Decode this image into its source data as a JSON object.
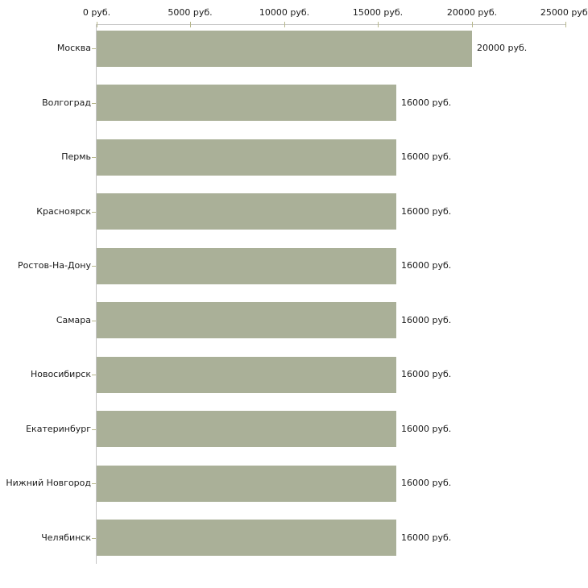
{
  "chart_data": {
    "type": "bar",
    "orientation": "horizontal",
    "title": "",
    "xlabel": "",
    "ylabel": "",
    "categories": [
      "Москва",
      "Волгоград",
      "Пермь",
      "Красноярск",
      "Ростов-На-Дону",
      "Самара",
      "Новосибирск",
      "Екатеринбург",
      "Нижний Новгород",
      "Челябинск"
    ],
    "values": [
      20000,
      16000,
      16000,
      16000,
      16000,
      16000,
      16000,
      16000,
      16000,
      16000
    ],
    "value_labels": [
      "20000 руб.",
      "16000 руб.",
      "16000 руб.",
      "16000 руб.",
      "16000 руб.",
      "16000 руб.",
      "16000 руб.",
      "16000 руб.",
      "16000 руб.",
      "16000 руб."
    ],
    "x_axis": {
      "position": "top",
      "min": 0,
      "max": 25000,
      "ticks": [
        0,
        5000,
        10000,
        15000,
        20000,
        25000
      ],
      "tick_labels": [
        "0 руб.",
        "5000 руб.",
        "10000 руб.",
        "15000 руб.",
        "20000 руб.",
        "25000 руб."
      ]
    },
    "legend": null,
    "grid": false,
    "colors": {
      "bar": "#aab098",
      "axis_line": "#c6c6c6",
      "tick": "#b7b78b",
      "text": "#1a1a1a",
      "background": "#ffffff"
    }
  }
}
